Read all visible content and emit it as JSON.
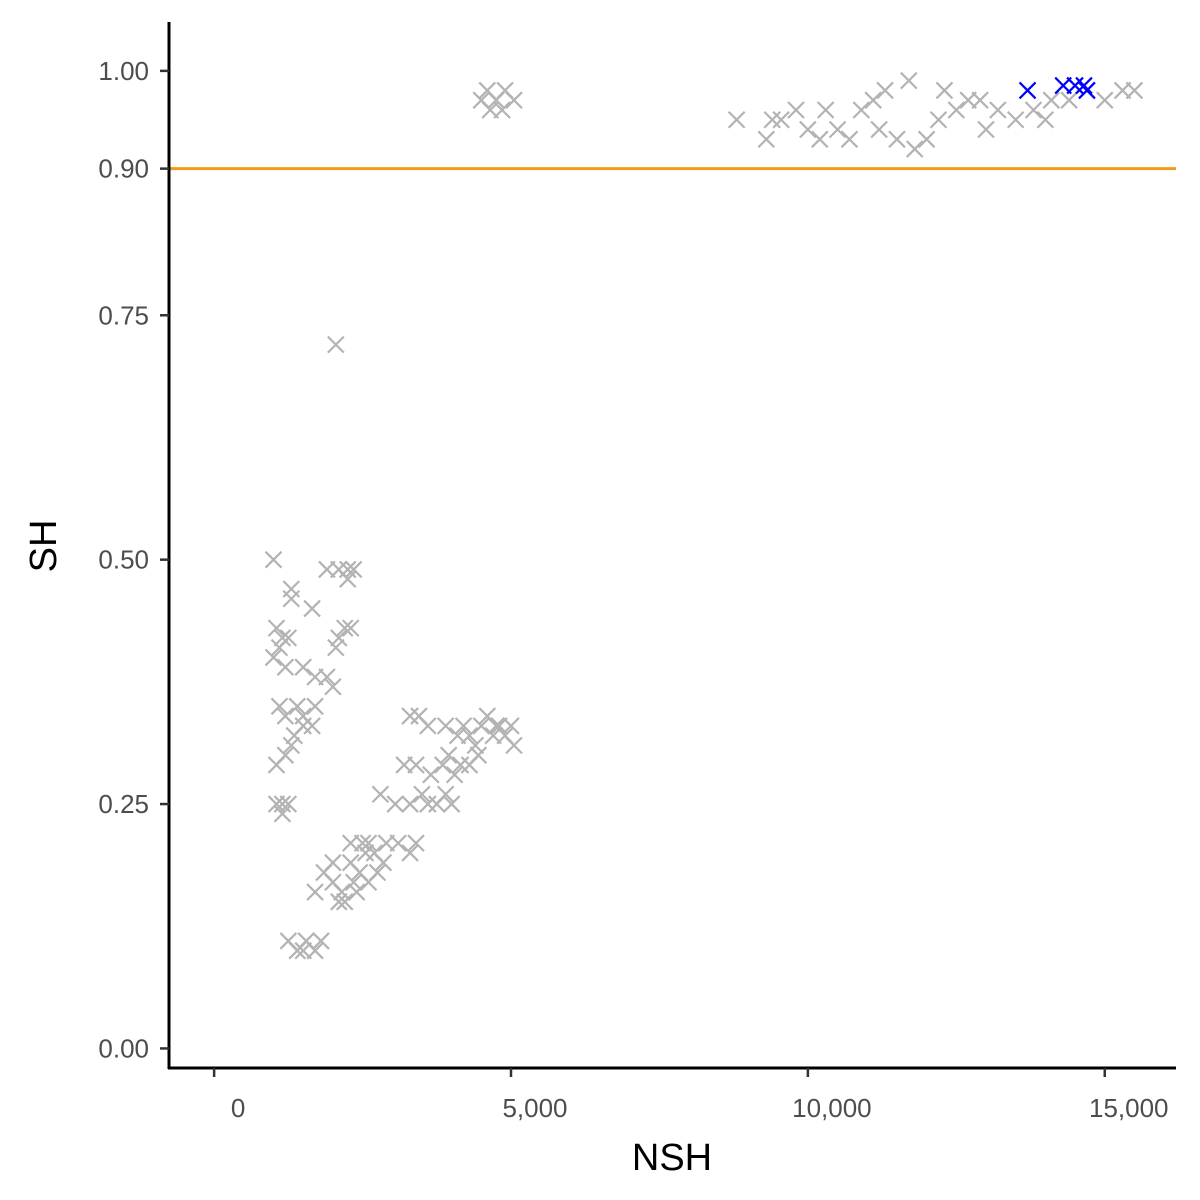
{
  "chart_data": {
    "type": "scatter",
    "title": "",
    "xlabel": "NSH",
    "ylabel": "SH",
    "xlim": [
      -760,
      16200
    ],
    "ylim": [
      -0.02,
      1.05
    ],
    "x_ticks": [
      0,
      5000,
      10000,
      15000
    ],
    "x_tick_labels": [
      "0",
      "5,000",
      "10,000",
      "15,000"
    ],
    "y_ticks": [
      0.0,
      0.25,
      0.5,
      0.75,
      0.9,
      1.0
    ],
    "y_tick_labels": [
      "0.00",
      "0.25",
      "0.50",
      "0.75",
      "0.90",
      "1.00"
    ],
    "grid": false,
    "legend": "none",
    "marker": "x",
    "reference_line": {
      "y": 0.9,
      "color": "#f29a1a"
    },
    "colors": {
      "default_points": "#b3b3b3",
      "highlight_points": "#0000ff"
    },
    "series": [
      {
        "color": "#b3b3b3",
        "points": [
          [
            1000,
            0.5
          ],
          [
            1300,
            0.47
          ],
          [
            1300,
            0.46
          ],
          [
            1650,
            0.45
          ],
          [
            1900,
            0.49
          ],
          [
            2100,
            0.49
          ],
          [
            2250,
            0.49
          ],
          [
            2350,
            0.49
          ],
          [
            2250,
            0.48
          ],
          [
            1050,
            0.43
          ],
          [
            1150,
            0.42
          ],
          [
            1100,
            0.41
          ],
          [
            1000,
            0.4
          ],
          [
            1250,
            0.42
          ],
          [
            1200,
            0.39
          ],
          [
            1500,
            0.39
          ],
          [
            1700,
            0.38
          ],
          [
            1900,
            0.38
          ],
          [
            2000,
            0.37
          ],
          [
            2100,
            0.42
          ],
          [
            2200,
            0.43
          ],
          [
            2300,
            0.43
          ],
          [
            2050,
            0.41
          ],
          [
            1100,
            0.35
          ],
          [
            1200,
            0.34
          ],
          [
            1400,
            0.35
          ],
          [
            1500,
            0.34
          ],
          [
            1650,
            0.33
          ],
          [
            1700,
            0.35
          ],
          [
            1500,
            0.33
          ],
          [
            1350,
            0.32
          ],
          [
            1300,
            0.31
          ],
          [
            1200,
            0.3
          ],
          [
            1050,
            0.29
          ],
          [
            1050,
            0.25
          ],
          [
            1150,
            0.24
          ],
          [
            1250,
            0.25
          ],
          [
            1150,
            0.25
          ],
          [
            2050,
            0.72
          ],
          [
            3300,
            0.34
          ],
          [
            3450,
            0.34
          ],
          [
            3600,
            0.33
          ],
          [
            3900,
            0.33
          ],
          [
            4200,
            0.33
          ],
          [
            4500,
            0.33
          ],
          [
            4750,
            0.33
          ],
          [
            5000,
            0.33
          ],
          [
            4100,
            0.32
          ],
          [
            4400,
            0.31
          ],
          [
            4700,
            0.32
          ],
          [
            4900,
            0.32
          ],
          [
            5050,
            0.31
          ],
          [
            4300,
            0.32
          ],
          [
            4600,
            0.34
          ],
          [
            4800,
            0.33
          ],
          [
            3200,
            0.29
          ],
          [
            3400,
            0.29
          ],
          [
            3650,
            0.28
          ],
          [
            3850,
            0.29
          ],
          [
            4050,
            0.28
          ],
          [
            4300,
            0.29
          ],
          [
            4450,
            0.3
          ],
          [
            4150,
            0.29
          ],
          [
            3950,
            0.3
          ],
          [
            2800,
            0.26
          ],
          [
            3050,
            0.25
          ],
          [
            3300,
            0.25
          ],
          [
            3500,
            0.26
          ],
          [
            3750,
            0.25
          ],
          [
            3900,
            0.26
          ],
          [
            4000,
            0.25
          ],
          [
            3600,
            0.25
          ],
          [
            2300,
            0.21
          ],
          [
            2500,
            0.21
          ],
          [
            2700,
            0.2
          ],
          [
            2900,
            0.21
          ],
          [
            3100,
            0.21
          ],
          [
            3300,
            0.2
          ],
          [
            3400,
            0.21
          ],
          [
            2600,
            0.21
          ],
          [
            1700,
            0.16
          ],
          [
            1850,
            0.18
          ],
          [
            2000,
            0.17
          ],
          [
            2150,
            0.16
          ],
          [
            2300,
            0.19
          ],
          [
            2450,
            0.18
          ],
          [
            2600,
            0.17
          ],
          [
            2750,
            0.18
          ],
          [
            2200,
            0.15
          ],
          [
            2400,
            0.16
          ],
          [
            2550,
            0.2
          ],
          [
            2000,
            0.19
          ],
          [
            2100,
            0.15
          ],
          [
            2350,
            0.17
          ],
          [
            2850,
            0.19
          ],
          [
            1250,
            0.11
          ],
          [
            1400,
            0.1
          ],
          [
            1550,
            0.11
          ],
          [
            1700,
            0.1
          ],
          [
            1800,
            0.11
          ],
          [
            1500,
            0.1
          ],
          [
            4500,
            0.97
          ],
          [
            4650,
            0.96
          ],
          [
            4750,
            0.97
          ],
          [
            4900,
            0.98
          ],
          [
            5050,
            0.97
          ],
          [
            4600,
            0.98
          ],
          [
            4850,
            0.96
          ],
          [
            8800,
            0.95
          ],
          [
            9300,
            0.93
          ],
          [
            9400,
            0.95
          ],
          [
            9550,
            0.95
          ],
          [
            9800,
            0.96
          ],
          [
            10000,
            0.94
          ],
          [
            10200,
            0.93
          ],
          [
            10500,
            0.94
          ],
          [
            10700,
            0.93
          ],
          [
            10900,
            0.96
          ],
          [
            11100,
            0.97
          ],
          [
            11300,
            0.98
          ],
          [
            11500,
            0.93
          ],
          [
            11800,
            0.92
          ],
          [
            12000,
            0.93
          ],
          [
            12200,
            0.95
          ],
          [
            12500,
            0.96
          ],
          [
            12700,
            0.97
          ],
          [
            12900,
            0.97
          ],
          [
            13200,
            0.96
          ],
          [
            13500,
            0.95
          ],
          [
            13800,
            0.96
          ],
          [
            14100,
            0.97
          ],
          [
            14400,
            0.97
          ],
          [
            14700,
            0.98
          ],
          [
            15000,
            0.97
          ],
          [
            15300,
            0.98
          ],
          [
            15500,
            0.98
          ],
          [
            13000,
            0.94
          ],
          [
            14000,
            0.95
          ],
          [
            12300,
            0.98
          ],
          [
            11700,
            0.99
          ],
          [
            10300,
            0.96
          ],
          [
            11200,
            0.94
          ]
        ]
      },
      {
        "color": "#0000ff",
        "points": [
          [
            13700,
            0.98
          ],
          [
            14300,
            0.985
          ],
          [
            14500,
            0.985
          ],
          [
            14650,
            0.985
          ],
          [
            14700,
            0.98
          ]
        ]
      }
    ]
  }
}
